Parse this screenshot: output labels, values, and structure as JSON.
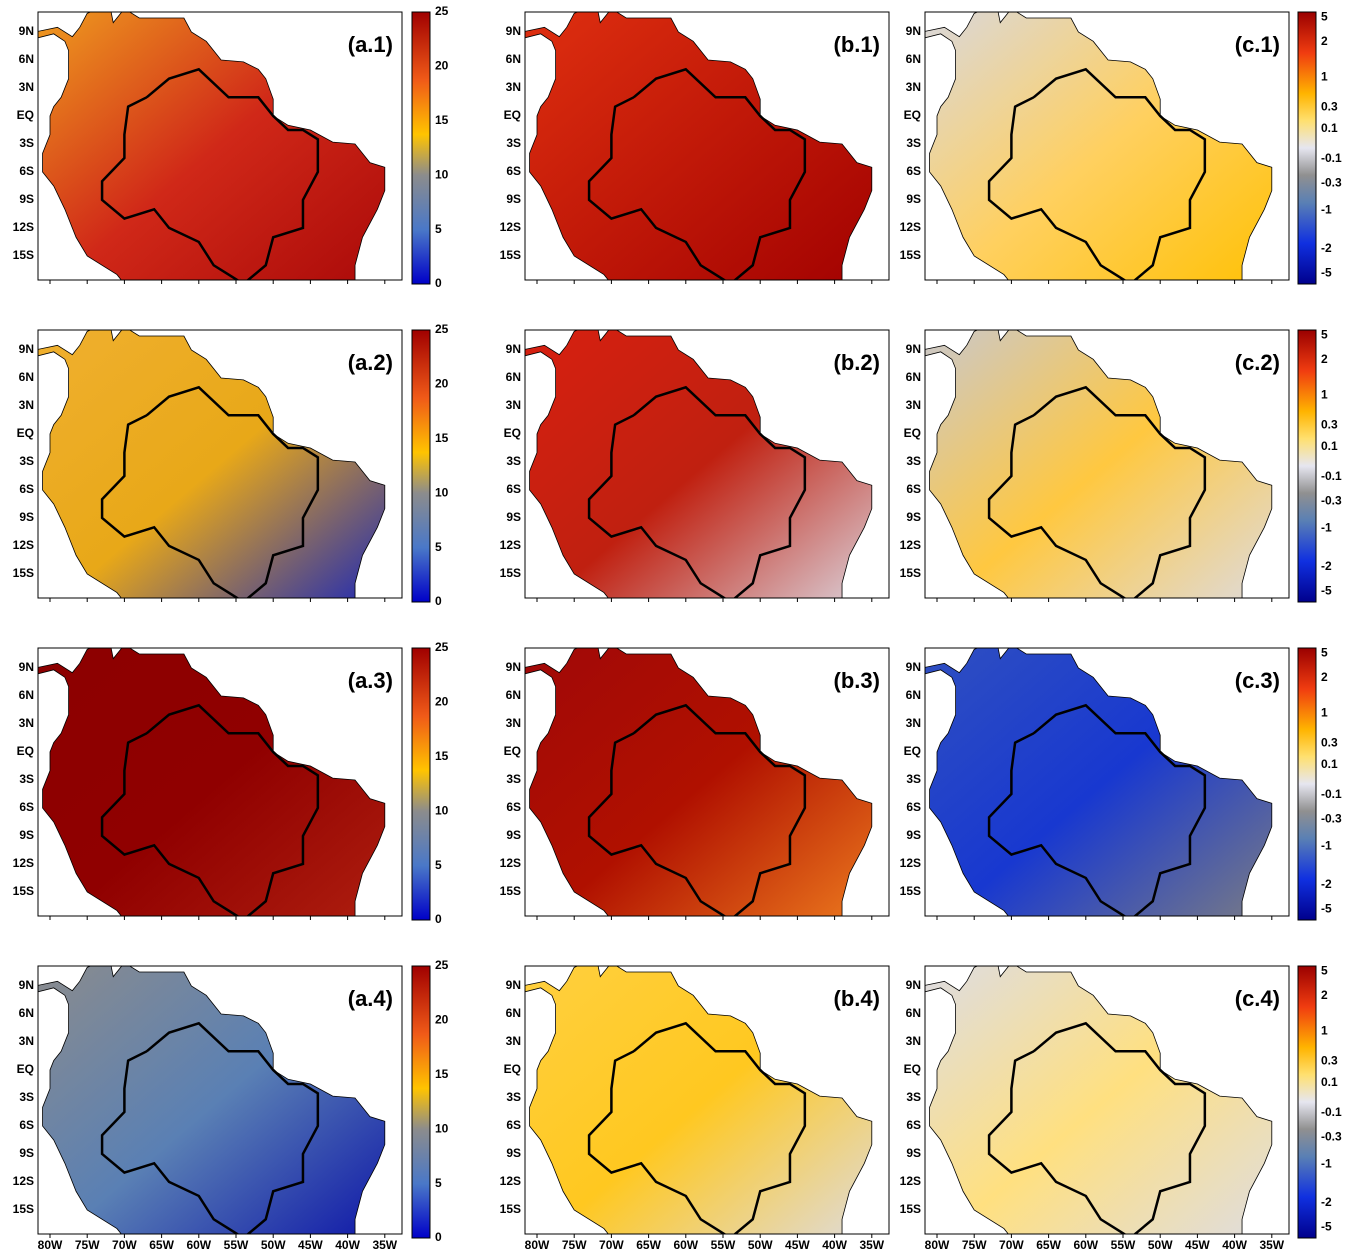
{
  "panels": [
    {
      "label": "(a.1)"
    },
    {
      "label": "(b.1)"
    },
    {
      "label": "(c.1)"
    },
    {
      "label": "(a.2)"
    },
    {
      "label": "(b.2)"
    },
    {
      "label": "(c.2)"
    },
    {
      "label": "(a.3)"
    },
    {
      "label": "(b.3)"
    },
    {
      "label": "(c.3)"
    },
    {
      "label": "(a.4)"
    },
    {
      "label": "(b.4)"
    },
    {
      "label": "(c.4)"
    }
  ],
  "lat_labels": [
    "9N",
    "6N",
    "3N",
    "EQ",
    "3S",
    "6S",
    "9S",
    "12S",
    "15S"
  ],
  "lon_labels": [
    "80W",
    "75W",
    "70W",
    "65W",
    "60W",
    "55W",
    "50W",
    "45W",
    "40W",
    "35W"
  ],
  "colorbar_a": {
    "ticks": [
      25,
      20,
      15,
      10,
      5,
      0
    ]
  },
  "colorbar_c": {
    "ticks": [
      5,
      2,
      1,
      0.3,
      0.1,
      -0.1,
      -0.3,
      -1,
      -2,
      -5
    ]
  }
}
